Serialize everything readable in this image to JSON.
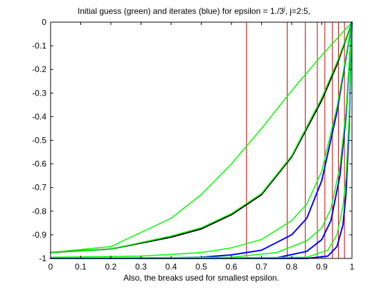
{
  "chart_data": {
    "type": "line",
    "title_main": "Initial guess (green) and iterates (blue) for epsilon = 1./3",
    "title_sup": "j",
    "title_tail": ", j=2:5,",
    "xlabel": "Also, the breaks used for smallest epsilon.",
    "xlim": [
      0,
      1
    ],
    "ylim": [
      -1,
      0
    ],
    "x_ticks": [
      "0",
      "0.1",
      "0.2",
      "0.3",
      "0.4",
      "0.5",
      "0.6",
      "0.7",
      "0.8",
      "0.9",
      "1"
    ],
    "y_ticks": [
      "0",
      "-0.1",
      "-0.2",
      "-0.3",
      "-0.4",
      "-0.5",
      "-0.6",
      "-0.7",
      "-0.8",
      "-0.9",
      "-1"
    ],
    "breaks": [
      0,
      0.65,
      0.785,
      0.845,
      0.885,
      0.91,
      0.935,
      0.955,
      0.975,
      1
    ],
    "colors": {
      "initial_guess": "#00ff00",
      "iterates": "#0000ff",
      "converged": "#000000",
      "breaks": "#cc0000",
      "axes": "#000000"
    },
    "series": [
      {
        "role": "initial_guess",
        "epsilon_exponent": 2,
        "x": [
          0,
          0.2,
          0.4,
          0.5,
          0.6,
          0.7,
          0.8,
          0.9,
          1
        ],
        "y": [
          -0.975,
          -0.95,
          -0.83,
          -0.73,
          -0.6,
          -0.45,
          -0.29,
          -0.14,
          0
        ]
      },
      {
        "role": "converged",
        "epsilon_exponent": 2,
        "x": [
          0,
          0.2,
          0.4,
          0.5,
          0.6,
          0.7,
          0.8,
          0.9,
          0.95,
          1
        ],
        "y": [
          -0.975,
          -0.96,
          -0.91,
          -0.875,
          -0.815,
          -0.73,
          -0.57,
          -0.33,
          -0.18,
          0
        ]
      },
      {
        "role": "initial_guess",
        "epsilon_exponent": 2,
        "x": [
          0,
          0.2,
          0.4,
          0.5,
          0.6,
          0.7,
          0.8,
          0.9,
          0.95,
          1
        ],
        "y": [
          -0.975,
          -0.96,
          -0.905,
          -0.87,
          -0.81,
          -0.725,
          -0.565,
          -0.32,
          -0.17,
          0
        ]
      },
      {
        "role": "iterate",
        "epsilon_exponent": 3,
        "x": [
          0,
          0.3,
          0.5,
          0.6,
          0.7,
          0.8,
          0.85,
          0.9,
          0.95,
          1
        ],
        "y": [
          -1,
          -1,
          -0.995,
          -0.985,
          -0.965,
          -0.9,
          -0.83,
          -0.67,
          -0.38,
          0
        ]
      },
      {
        "role": "initial_guess",
        "epsilon_exponent": 3,
        "x": [
          0,
          0.3,
          0.5,
          0.6,
          0.7,
          0.8,
          0.85,
          0.9,
          0.95,
          1
        ],
        "y": [
          -0.995,
          -0.99,
          -0.975,
          -0.955,
          -0.92,
          -0.84,
          -0.77,
          -0.63,
          -0.36,
          0
        ]
      },
      {
        "role": "iterate",
        "epsilon_exponent": 4,
        "x": [
          0,
          0.6,
          0.75,
          0.85,
          0.9,
          0.93,
          0.96,
          0.98,
          1
        ],
        "y": [
          -1,
          -1,
          -0.997,
          -0.97,
          -0.92,
          -0.84,
          -0.65,
          -0.4,
          0
        ]
      },
      {
        "role": "initial_guess",
        "epsilon_exponent": 4,
        "x": [
          0,
          0.6,
          0.75,
          0.85,
          0.9,
          0.93,
          0.96,
          0.98,
          1
        ],
        "y": [
          -0.998,
          -0.995,
          -0.975,
          -0.925,
          -0.87,
          -0.79,
          -0.61,
          -0.38,
          0
        ]
      },
      {
        "role": "iterate",
        "epsilon_exponent": 5,
        "x": [
          0,
          0.85,
          0.92,
          0.95,
          0.97,
          0.98,
          0.99,
          1
        ],
        "y": [
          -1,
          -1,
          -0.99,
          -0.95,
          -0.86,
          -0.73,
          -0.46,
          0
        ]
      },
      {
        "role": "initial_guess",
        "epsilon_exponent": 5,
        "x": [
          0,
          0.85,
          0.92,
          0.95,
          0.97,
          0.98,
          0.99,
          1
        ],
        "y": [
          -1,
          -0.995,
          -0.965,
          -0.9,
          -0.78,
          -0.66,
          -0.42,
          0
        ]
      }
    ]
  }
}
